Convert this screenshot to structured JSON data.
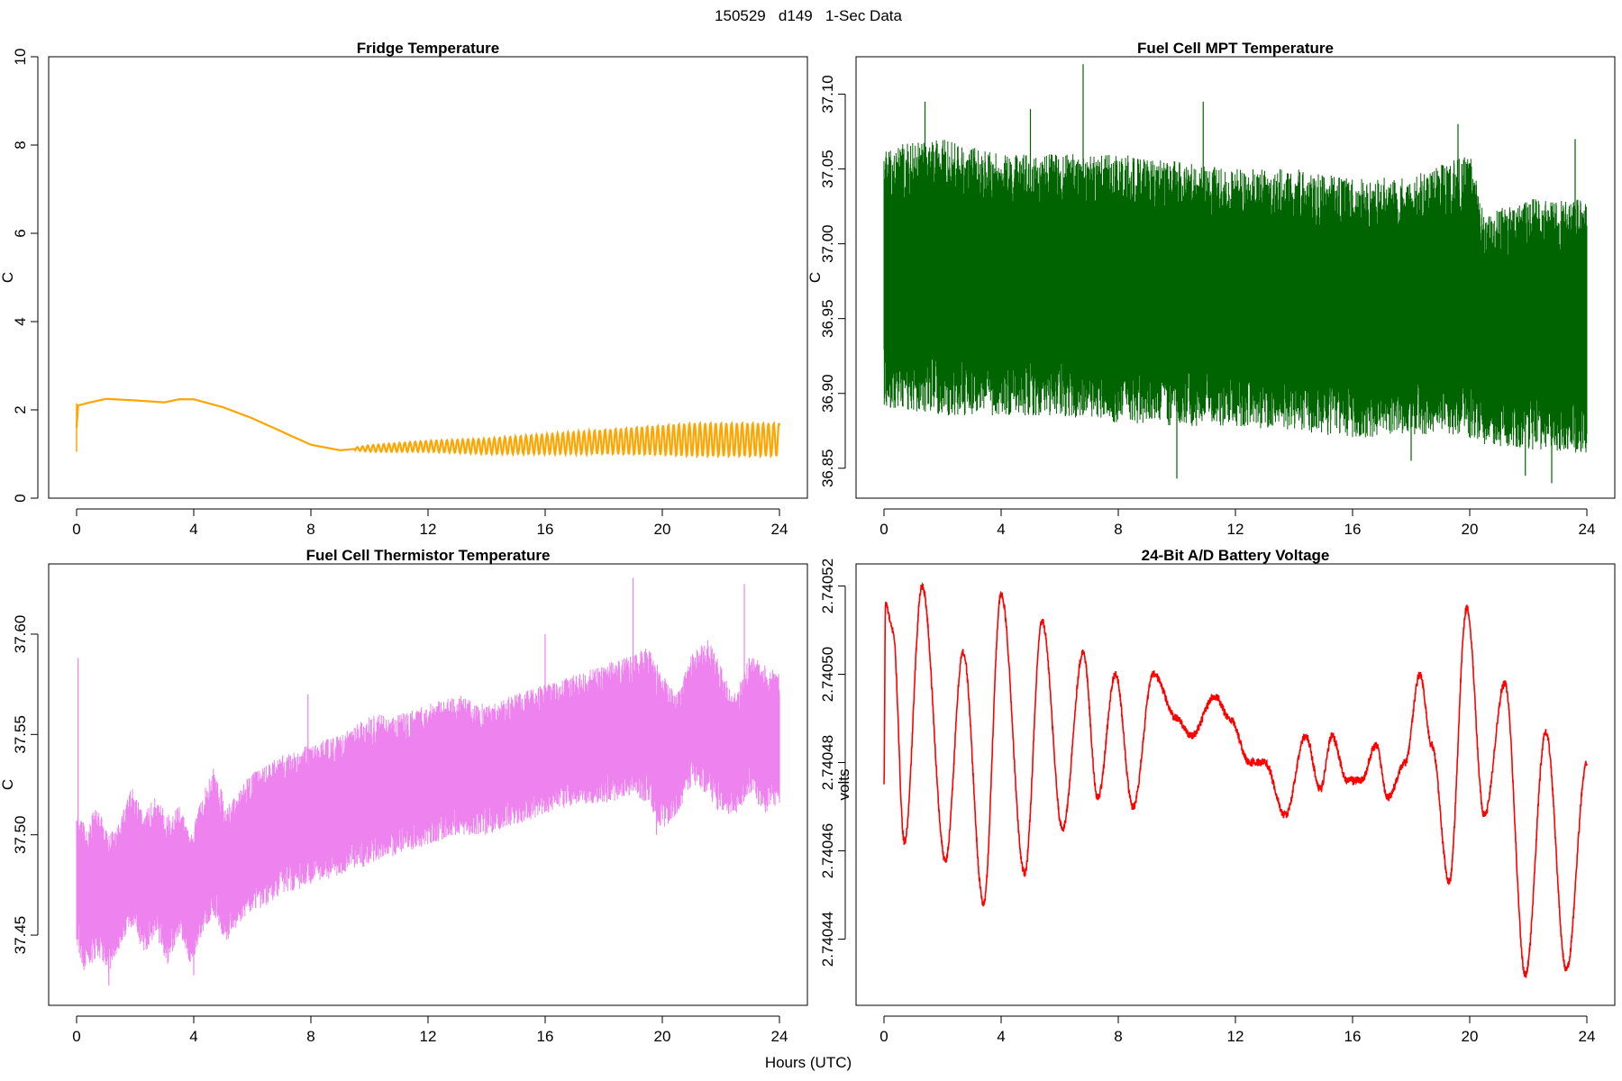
{
  "figure": {
    "title": "150529   d149   1-Sec Data",
    "xlabel": "Hours (UTC)"
  },
  "chart_data": [
    {
      "type": "line",
      "title": "Fridge Temperature",
      "ylabel": "C",
      "xlabel": "Hours (UTC)",
      "color": "#FFA500",
      "xlim": [
        0,
        24
      ],
      "ylim": [
        0,
        10
      ],
      "xticks": [
        0,
        4,
        8,
        12,
        16,
        20,
        24
      ],
      "yticks": [
        0,
        2,
        4,
        6,
        8,
        10
      ],
      "ytick_labels": [
        "0",
        "2",
        "4",
        "6",
        "8",
        "10"
      ],
      "envelope": {
        "x": [
          0,
          0.05,
          0.5,
          1,
          2,
          3,
          3.5,
          4,
          5,
          6,
          7,
          8,
          9,
          9.5,
          10,
          12,
          14,
          16,
          18,
          20,
          21,
          22,
          24
        ],
        "upper": [
          2.15,
          2.15,
          2.2,
          2.28,
          2.25,
          2.2,
          2.28,
          2.28,
          2.1,
          1.85,
          1.55,
          1.25,
          1.12,
          1.15,
          1.2,
          1.3,
          1.35,
          1.45,
          1.55,
          1.65,
          1.7,
          1.7,
          1.7
        ],
        "lower": [
          1.05,
          2.05,
          2.15,
          2.22,
          2.18,
          2.14,
          2.2,
          2.2,
          2.02,
          1.77,
          1.47,
          1.17,
          1.05,
          1.08,
          1.05,
          1.05,
          1.0,
          1.0,
          1.0,
          0.98,
          0.95,
          0.95,
          0.95
        ],
        "spike": [
          0,
          1.05
        ]
      }
    },
    {
      "type": "line",
      "title": "Fuel Cell MPT Temperature",
      "ylabel": "C",
      "xlabel": "Hours (UTC)",
      "color": "#006400",
      "xlim": [
        0,
        24
      ],
      "ylim": [
        36.83,
        37.125
      ],
      "xticks": [
        0,
        4,
        8,
        12,
        16,
        20,
        24
      ],
      "yticks": [
        36.85,
        36.9,
        36.95,
        37.0,
        37.05,
        37.1
      ],
      "ytick_labels": [
        "36.85",
        "36.90",
        "36.95",
        "37.00",
        "37.05",
        "37.10"
      ],
      "envelope": {
        "x": [
          0,
          2,
          4,
          6,
          8,
          10,
          12,
          14,
          16,
          18,
          20,
          20.5,
          22,
          24
        ],
        "upper": [
          37.065,
          37.07,
          37.06,
          37.06,
          37.06,
          37.055,
          37.05,
          37.05,
          37.045,
          37.045,
          37.06,
          37.02,
          37.03,
          37.03
        ],
        "lower": [
          36.89,
          36.885,
          36.885,
          36.885,
          36.88,
          36.878,
          36.878,
          36.875,
          36.87,
          36.872,
          36.87,
          36.865,
          36.862,
          36.86
        ],
        "spike_up": [
          [
            1.4,
            37.095
          ],
          [
            5.0,
            37.09
          ],
          [
            6.8,
            37.12
          ],
          [
            10.9,
            37.095
          ],
          [
            19.6,
            37.08
          ],
          [
            23.6,
            37.07
          ]
        ],
        "spike_down": [
          [
            10.0,
            36.843
          ],
          [
            21.9,
            36.845
          ],
          [
            22.8,
            36.84
          ],
          [
            18.0,
            36.855
          ]
        ]
      }
    },
    {
      "type": "line",
      "title": "Fuel Cell Thermistor Temperature",
      "ylabel": "C",
      "xlabel": "Hours (UTC)",
      "color": "#EE82EE",
      "xlim": [
        0,
        24
      ],
      "ylim": [
        37.415,
        37.635
      ],
      "xticks": [
        0,
        4,
        8,
        12,
        16,
        20,
        24
      ],
      "yticks": [
        37.45,
        37.5,
        37.55,
        37.6
      ],
      "ytick_labels": [
        "37.45",
        "37.50",
        "37.55",
        "37.60"
      ],
      "envelope": {
        "x": [
          0,
          0.3,
          0.7,
          1.1,
          1.5,
          1.9,
          2.3,
          2.7,
          3.1,
          3.5,
          3.9,
          4.3,
          4.7,
          5.1,
          5.5,
          5.9,
          6.5,
          7,
          8,
          9,
          10,
          11,
          12,
          13,
          14,
          15,
          16,
          17,
          18,
          19,
          19.5,
          20,
          20.5,
          21,
          21.5,
          22,
          22.5,
          23,
          23.5,
          24
        ],
        "upper": [
          37.51,
          37.505,
          37.515,
          37.5,
          37.51,
          37.525,
          37.51,
          37.52,
          37.51,
          37.515,
          37.5,
          37.52,
          37.535,
          37.515,
          37.52,
          37.53,
          37.535,
          37.54,
          37.545,
          37.55,
          37.56,
          37.56,
          37.565,
          37.57,
          37.565,
          37.57,
          37.575,
          37.58,
          37.585,
          37.59,
          37.595,
          37.58,
          37.57,
          37.59,
          37.6,
          37.585,
          37.57,
          37.59,
          37.585,
          37.58
        ],
        "lower": [
          37.445,
          37.43,
          37.44,
          37.43,
          37.445,
          37.455,
          37.44,
          37.45,
          37.435,
          37.45,
          37.435,
          37.45,
          37.46,
          37.445,
          37.455,
          37.46,
          37.465,
          37.47,
          37.475,
          37.48,
          37.485,
          37.49,
          37.495,
          37.5,
          37.5,
          37.505,
          37.51,
          37.515,
          37.515,
          37.52,
          37.515,
          37.5,
          37.51,
          37.525,
          37.52,
          37.51,
          37.51,
          37.52,
          37.51,
          37.515
        ],
        "spike_up": [
          [
            0.05,
            37.588
          ],
          [
            19.0,
            37.628
          ],
          [
            22.8,
            37.625
          ],
          [
            16.0,
            37.6
          ],
          [
            7.9,
            37.57
          ]
        ],
        "spike_down": [
          [
            1.1,
            37.425
          ],
          [
            4.0,
            37.43
          ],
          [
            19.8,
            37.5
          ]
        ]
      }
    },
    {
      "type": "line",
      "title": "24-Bit A/D Battery Voltage",
      "ylabel": "volts",
      "xlabel": "Hours (UTC)",
      "color": "#FF0000",
      "xlim": [
        0,
        24
      ],
      "ylim": [
        2.740425,
        2.740525
      ],
      "xticks": [
        0,
        4,
        8,
        12,
        16,
        20,
        24
      ],
      "yticks": [
        2.74044,
        2.74046,
        2.74048,
        2.7405,
        2.74052
      ],
      "ytick_labels": [
        "2.74044",
        "2.74046",
        "2.74048",
        "2.74050",
        "2.74052"
      ],
      "series_points": {
        "x": [
          0,
          0.05,
          0.3,
          0.7,
          1.3,
          2.1,
          2.7,
          3.4,
          4.0,
          4.8,
          5.4,
          6.1,
          6.8,
          7.3,
          7.9,
          8.5,
          9.2,
          10.0,
          10.5,
          11.3,
          11.8,
          12.5,
          13.0,
          13.7,
          14.4,
          14.9,
          15.3,
          15.8,
          16.3,
          16.8,
          17.2,
          17.8,
          18.3,
          18.7,
          19.3,
          19.9,
          20.5,
          21.2,
          21.9,
          22.6,
          23.3,
          24.0
        ],
        "y": [
          2.740475,
          2.740516,
          2.74051,
          2.740462,
          2.74052,
          2.740458,
          2.740505,
          2.740448,
          2.740518,
          2.740455,
          2.740512,
          2.740465,
          2.740505,
          2.740472,
          2.7405,
          2.74047,
          2.7405,
          2.74049,
          2.740486,
          2.740495,
          2.74049,
          2.74048,
          2.74048,
          2.740468,
          2.740486,
          2.740474,
          2.740486,
          2.740476,
          2.740476,
          2.740484,
          2.740472,
          2.74048,
          2.7405,
          2.740484,
          2.740453,
          2.740515,
          2.740468,
          2.740498,
          2.740432,
          2.740487,
          2.740433,
          2.74048
        ]
      }
    }
  ]
}
